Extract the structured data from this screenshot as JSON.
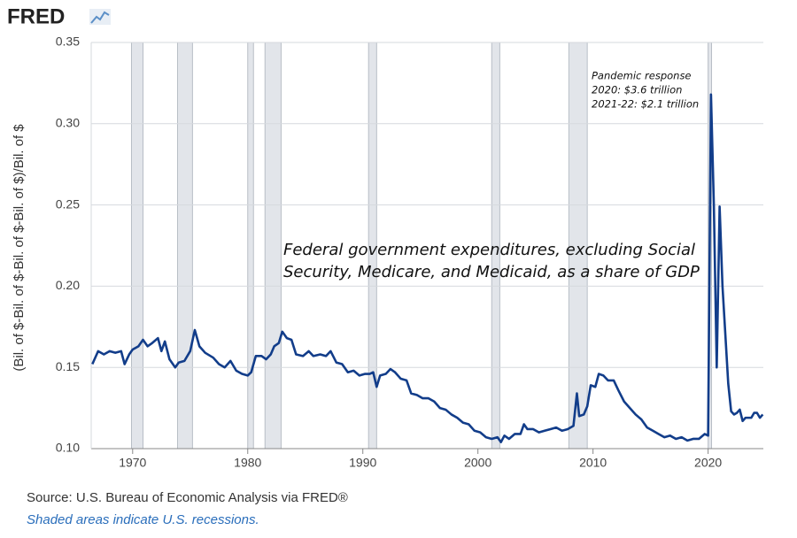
{
  "logo": "FRED",
  "chart_data": {
    "type": "line",
    "y_label": "(Bil. of $-Bil. of $-Bil. of $-Bil. of $)/Bil. of $",
    "annotation": [
      "Federal government expenditures, excluding Social",
      "Security, Medicare, and Medicaid, as a share of GDP"
    ],
    "pandemic_note": [
      "Pandemic response",
      "2020: $3.6 trillion",
      "2021-22: $2.1 trillion"
    ],
    "color": "#123d8a",
    "recession_color": "#e2e5ea",
    "grid": true,
    "xlim": [
      1966.4,
      2024.8
    ],
    "xticks": [
      1970,
      1980,
      1990,
      2000,
      2010,
      2020
    ],
    "ylim": [
      0.1,
      0.35
    ],
    "yticks": [
      {
        "value": 0.1,
        "label": "0.10"
      },
      0.15,
      {
        "value": 0.2,
        "label": "0.20"
      },
      0.25,
      {
        "value": 0.3,
        "label": "0.30"
      },
      0.35
    ],
    "recessions": [
      [
        1969.9,
        1970.9
      ],
      [
        1973.9,
        1975.2
      ],
      [
        1980.0,
        1980.5
      ],
      [
        1981.5,
        1982.9
      ],
      [
        1990.5,
        1991.2
      ],
      [
        2001.2,
        2001.9
      ],
      [
        2007.9,
        2009.5
      ],
      [
        2020.0,
        2020.3
      ]
    ],
    "x": [
      1966.5,
      1967,
      1967.5,
      1968,
      1968.5,
      1969,
      1969.3,
      1969.7,
      1970,
      1970.5,
      1970.9,
      1971.3,
      1971.7,
      1972.2,
      1972.5,
      1972.8,
      1973.2,
      1973.7,
      1974,
      1974.5,
      1975,
      1975.4,
      1975.8,
      1976.3,
      1977,
      1977.5,
      1978,
      1978.5,
      1979,
      1979.5,
      1980,
      1980.3,
      1980.7,
      1981.2,
      1981.6,
      1982,
      1982.3,
      1982.7,
      1983,
      1983.4,
      1983.8,
      1984.2,
      1984.8,
      1985.3,
      1985.7,
      1986.3,
      1986.8,
      1987.2,
      1987.7,
      1988.2,
      1988.7,
      1989.2,
      1989.7,
      1990.2,
      1990.6,
      1990.9,
      1991.2,
      1991.5,
      1992,
      1992.4,
      1992.8,
      1993.3,
      1993.8,
      1994.2,
      1994.7,
      1995.2,
      1995.7,
      1996.2,
      1996.7,
      1997.2,
      1997.7,
      1998.2,
      1998.7,
      1999.2,
      1999.7,
      2000.2,
      2000.7,
      2001.2,
      2001.7,
      2002,
      2002.3,
      2002.7,
      2003.2,
      2003.7,
      2004,
      2004.3,
      2004.8,
      2005.3,
      2005.8,
      2006.3,
      2006.8,
      2007.3,
      2007.8,
      2008.3,
      2008.6,
      2008.8,
      2009.2,
      2009.5,
      2009.8,
      2010.2,
      2010.5,
      2010.9,
      2011.3,
      2011.8,
      2012.2,
      2012.7,
      2013.2,
      2013.7,
      2014.2,
      2014.7,
      2015.2,
      2015.7,
      2016.2,
      2016.7,
      2017.2,
      2017.7,
      2018.2,
      2018.7,
      2019.2,
      2019.7,
      2020,
      2020.25,
      2020.5,
      2020.75,
      2021,
      2021.25,
      2021.5,
      2021.75,
      2022,
      2022.25,
      2022.5,
      2022.75,
      2023,
      2023.25,
      2023.5,
      2023.75,
      2024,
      2024.25,
      2024.5,
      2024.75
    ],
    "values": [
      0.152,
      0.16,
      0.158,
      0.16,
      0.159,
      0.16,
      0.152,
      0.158,
      0.161,
      0.163,
      0.167,
      0.163,
      0.165,
      0.168,
      0.16,
      0.166,
      0.155,
      0.15,
      0.153,
      0.154,
      0.16,
      0.173,
      0.163,
      0.159,
      0.156,
      0.152,
      0.15,
      0.154,
      0.148,
      0.146,
      0.145,
      0.147,
      0.157,
      0.157,
      0.155,
      0.158,
      0.163,
      0.165,
      0.172,
      0.168,
      0.167,
      0.158,
      0.157,
      0.16,
      0.157,
      0.158,
      0.157,
      0.16,
      0.153,
      0.152,
      0.147,
      0.148,
      0.145,
      0.146,
      0.146,
      0.147,
      0.138,
      0.145,
      0.146,
      0.149,
      0.147,
      0.143,
      0.142,
      0.134,
      0.133,
      0.131,
      0.131,
      0.129,
      0.125,
      0.124,
      0.121,
      0.119,
      0.116,
      0.115,
      0.111,
      0.11,
      0.107,
      0.106,
      0.107,
      0.104,
      0.108,
      0.106,
      0.109,
      0.109,
      0.115,
      0.112,
      0.112,
      0.11,
      0.111,
      0.112,
      0.113,
      0.111,
      0.112,
      0.114,
      0.134,
      0.12,
      0.121,
      0.126,
      0.139,
      0.138,
      0.146,
      0.145,
      0.142,
      0.142,
      0.136,
      0.129,
      0.125,
      0.121,
      0.118,
      0.113,
      0.111,
      0.109,
      0.107,
      0.108,
      0.106,
      0.107,
      0.105,
      0.106,
      0.106,
      0.109,
      0.108,
      0.318,
      0.25,
      0.15,
      0.249,
      0.2,
      0.17,
      0.14,
      0.123,
      0.121,
      0.122,
      0.124,
      0.117,
      0.119,
      0.119,
      0.119,
      0.122,
      0.122,
      0.119,
      0.121
    ]
  },
  "source": "Source: U.S. Bureau of Economic Analysis via FRED®",
  "shade_note": "Shaded areas indicate U.S. recessions."
}
